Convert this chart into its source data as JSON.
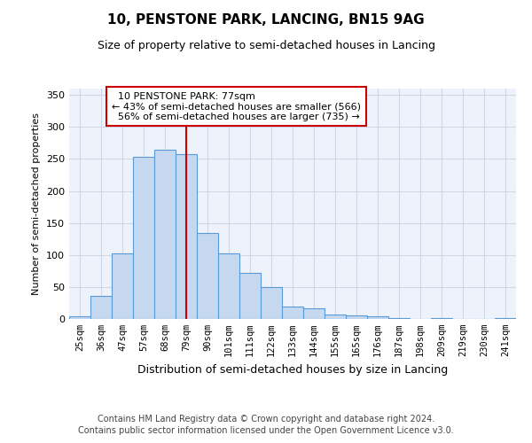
{
  "title": "10, PENSTONE PARK, LANCING, BN15 9AG",
  "subtitle": "Size of property relative to semi-detached houses in Lancing",
  "xlabel": "Distribution of semi-detached houses by size in Lancing",
  "ylabel": "Number of semi-detached properties",
  "footer1": "Contains HM Land Registry data © Crown copyright and database right 2024.",
  "footer2": "Contains public sector information licensed under the Open Government Licence v3.0.",
  "categories": [
    "25sqm",
    "36sqm",
    "47sqm",
    "57sqm",
    "68sqm",
    "79sqm",
    "90sqm",
    "101sqm",
    "111sqm",
    "122sqm",
    "133sqm",
    "144sqm",
    "155sqm",
    "165sqm",
    "176sqm",
    "187sqm",
    "198sqm",
    "209sqm",
    "219sqm",
    "230sqm",
    "241sqm"
  ],
  "values": [
    4,
    36,
    102,
    253,
    264,
    257,
    134,
    102,
    72,
    50,
    20,
    17,
    7,
    5,
    4,
    1,
    0,
    2,
    0,
    0,
    2
  ],
  "bar_color": "#c5d8f0",
  "bar_edge_color": "#5b9bd5",
  "bar_edge_width": 0.8,
  "property_size": "77sqm",
  "property_name": "10 PENSTONE PARK",
  "pct_smaller": 43,
  "count_smaller": 566,
  "pct_larger": 56,
  "count_larger": 735,
  "vline_bar_index": 5,
  "vline_color": "#cc0000",
  "annotation_box_color": "#ffffff",
  "annotation_box_edgecolor": "#cc0000",
  "grid_color": "#d0d8e8",
  "background_color": "#eef2fa",
  "ylim": [
    0,
    360
  ],
  "yticks": [
    0,
    50,
    100,
    150,
    200,
    250,
    300,
    350
  ]
}
